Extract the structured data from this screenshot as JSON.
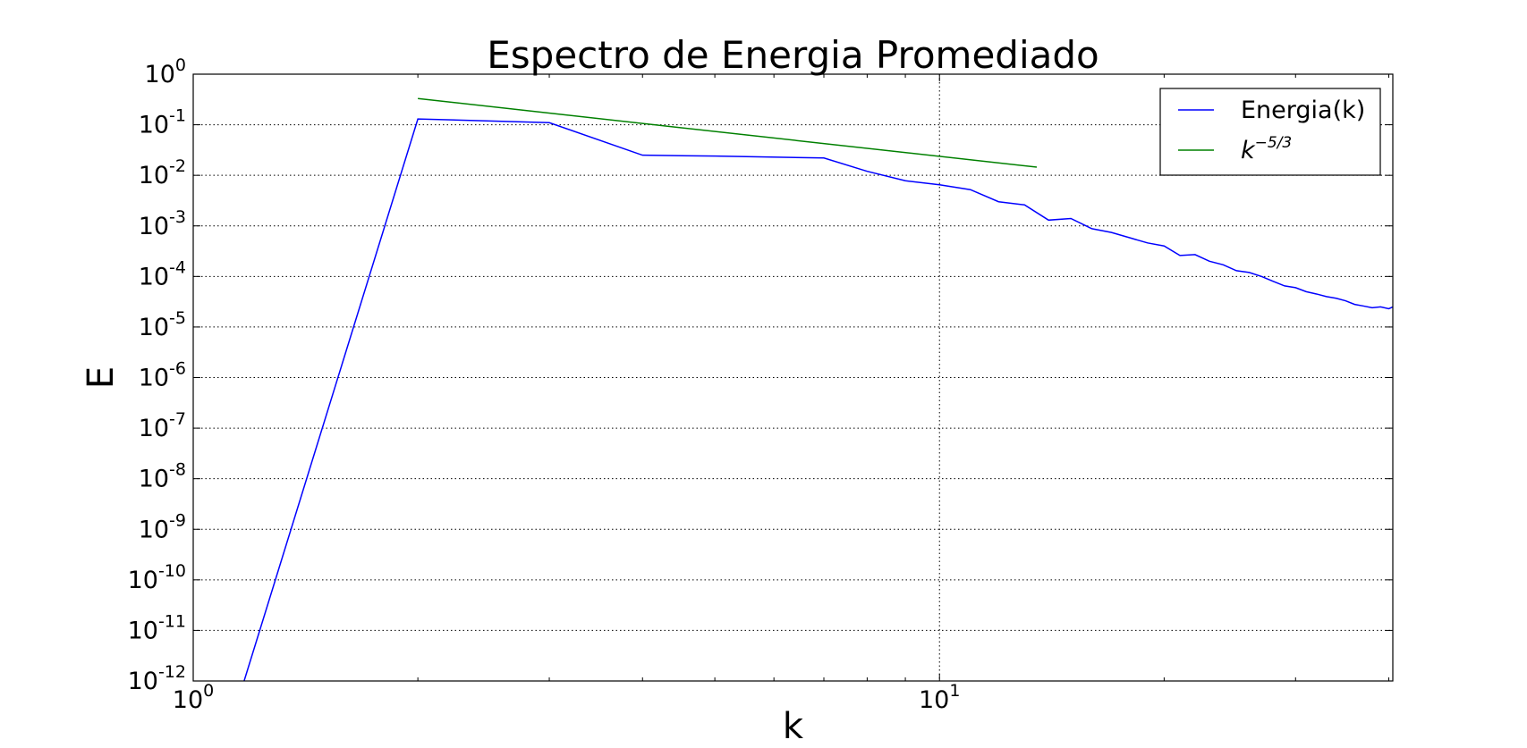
{
  "chart_data": {
    "type": "line",
    "title": "Espectro de Energia Promediado",
    "xlabel": "k",
    "ylabel": "E",
    "xscale": "log",
    "yscale": "log",
    "xlim": [
      1,
      40.5
    ],
    "ylim": [
      1e-12,
      1
    ],
    "grid": true,
    "legend_position": "top-right",
    "x_ticks": [
      {
        "value": 1,
        "base": "10",
        "exp": "0"
      },
      {
        "value": 10,
        "base": "10",
        "exp": "1"
      }
    ],
    "y_ticks": [
      {
        "value": 1,
        "base": "10",
        "exp": "0"
      },
      {
        "value": 0.1,
        "base": "10",
        "exp": "-1"
      },
      {
        "value": 0.01,
        "base": "10",
        "exp": "-2"
      },
      {
        "value": 0.001,
        "base": "10",
        "exp": "-3"
      },
      {
        "value": 0.0001,
        "base": "10",
        "exp": "-4"
      },
      {
        "value": 1e-05,
        "base": "10",
        "exp": "-5"
      },
      {
        "value": 1e-06,
        "base": "10",
        "exp": "-6"
      },
      {
        "value": 1e-07,
        "base": "10",
        "exp": "-7"
      },
      {
        "value": 1e-08,
        "base": "10",
        "exp": "-8"
      },
      {
        "value": 1e-09,
        "base": "10",
        "exp": "-9"
      },
      {
        "value": 1e-10,
        "base": "10",
        "exp": "-10"
      },
      {
        "value": 1e-11,
        "base": "10",
        "exp": "-11"
      },
      {
        "value": 1e-12,
        "base": "10",
        "exp": "-12"
      }
    ],
    "series": [
      {
        "name": "Energia(k)",
        "color": "#0000ff",
        "legend_label": {
          "text": "Energia(k)"
        },
        "points": [
          [
            1.17,
            1e-12
          ],
          [
            2,
            0.13
          ],
          [
            3,
            0.11
          ],
          [
            4,
            0.025
          ],
          [
            5,
            0.024
          ],
          [
            7,
            0.022
          ],
          [
            8,
            0.012
          ],
          [
            9,
            0.0078
          ],
          [
            10,
            0.0065
          ],
          [
            11,
            0.0052
          ],
          [
            12,
            0.003
          ],
          [
            13,
            0.0026
          ],
          [
            14,
            0.0013
          ],
          [
            15,
            0.0014
          ],
          [
            16,
            0.00088
          ],
          [
            17,
            0.00074
          ],
          [
            18,
            0.00058
          ],
          [
            19,
            0.00046
          ],
          [
            20,
            0.0004
          ],
          [
            21,
            0.00026
          ],
          [
            22,
            0.00027
          ],
          [
            23,
            0.0002
          ],
          [
            24,
            0.00017
          ],
          [
            25,
            0.00013
          ],
          [
            26,
            0.00012
          ],
          [
            27,
            0.0001
          ],
          [
            28,
            8e-05
          ],
          [
            29,
            6.5e-05
          ],
          [
            30,
            6e-05
          ],
          [
            31,
            5e-05
          ],
          [
            32,
            4.5e-05
          ],
          [
            33,
            4e-05
          ],
          [
            34,
            3.7e-05
          ],
          [
            35,
            3.3e-05
          ],
          [
            36,
            2.8e-05
          ],
          [
            37,
            2.6e-05
          ],
          [
            38,
            2.4e-05
          ],
          [
            39,
            2.5e-05
          ],
          [
            40,
            2.3e-05
          ],
          [
            40.5,
            2.5e-05
          ]
        ]
      },
      {
        "name": "k^-5/3",
        "color": "#008000",
        "legend_label": {
          "base": "k",
          "exp": "−5/3"
        },
        "points": [
          [
            2,
            0.33
          ],
          [
            13.5,
            0.0145
          ]
        ]
      }
    ]
  }
}
